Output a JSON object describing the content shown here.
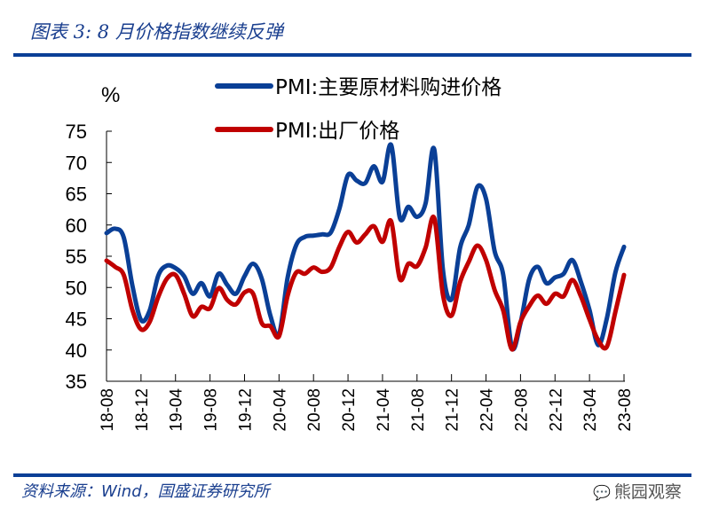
{
  "title": "图表 3:  8 月价格指数继续反弹",
  "source": "资料来源：Wind，国盛证券研究所",
  "watermark": "熊园观察",
  "chart_data": {
    "type": "line",
    "title": "",
    "ylabel": "%",
    "ylim": [
      35,
      75
    ],
    "yticks": [
      35,
      40,
      45,
      50,
      55,
      60,
      65,
      70,
      75
    ],
    "xtick_labels": [
      "18-08",
      "18-12",
      "19-04",
      "19-08",
      "19-12",
      "20-04",
      "20-08",
      "20-12",
      "21-04",
      "21-08",
      "21-12",
      "22-04",
      "22-08",
      "22-12",
      "23-04",
      "23-08"
    ],
    "x_start": "2018-08",
    "x_end": "2023-08",
    "grid": false,
    "legend": "top-center",
    "series": [
      {
        "name": "PMI:主要原材料购进价格",
        "color": "#0a3f96",
        "values": [
          58.7,
          59.4,
          58.0,
          50.3,
          44.8,
          46.3,
          51.9,
          53.5,
          53.1,
          51.8,
          49.0,
          50.7,
          48.6,
          52.2,
          50.4,
          49.0,
          51.8,
          53.8,
          51.4,
          45.5,
          42.5,
          51.6,
          56.8,
          58.1,
          58.3,
          58.5,
          58.8,
          62.6,
          68.0,
          67.1,
          66.7,
          69.4,
          66.9,
          72.8,
          61.2,
          62.9,
          61.3,
          63.5,
          72.1,
          52.9,
          48.1,
          56.4,
          60.0,
          66.1,
          64.2,
          55.8,
          52.0,
          40.4,
          44.3,
          51.3,
          53.3,
          50.7,
          51.6,
          52.2,
          54.4,
          50.9,
          46.4,
          40.8,
          45.0,
          52.4,
          56.5
        ]
      },
      {
        "name": "PMI:出厂价格",
        "color": "#c00000",
        "values": [
          54.3,
          53.3,
          52.0,
          46.4,
          43.3,
          44.5,
          48.5,
          51.4,
          52.0,
          49.0,
          45.4,
          46.9,
          46.7,
          49.9,
          48.0,
          47.3,
          49.2,
          49.0,
          44.3,
          43.8,
          42.2,
          48.7,
          52.4,
          52.2,
          53.2,
          52.5,
          53.2,
          56.5,
          58.9,
          57.2,
          58.5,
          59.8,
          57.3,
          60.6,
          51.4,
          53.8,
          53.4,
          56.4,
          61.1,
          48.9,
          45.5,
          50.9,
          54.1,
          56.7,
          54.4,
          49.6,
          46.3,
          40.1,
          44.5,
          47.0,
          48.7,
          47.4,
          49.0,
          48.6,
          51.2,
          48.6,
          44.9,
          41.6,
          40.5,
          46.1,
          52.0
        ]
      }
    ]
  }
}
